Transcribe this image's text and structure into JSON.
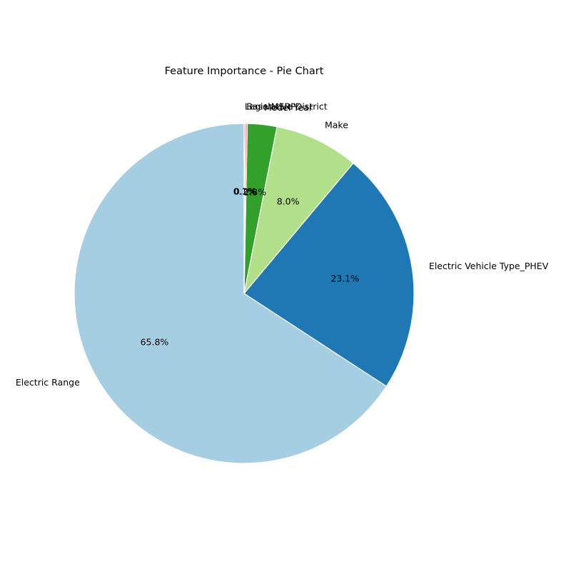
{
  "chart_data": {
    "type": "pie",
    "title": "Feature Importance - Pie Chart",
    "start_angle_deg": 90,
    "direction": "counterclockwise",
    "legend": "none",
    "slices": [
      {
        "label": "Electric Range",
        "value": 65.8,
        "pct_label": "65.8%",
        "color": "#a6cee3"
      },
      {
        "label": "Electric Vehicle Type_PHEV",
        "value": 23.1,
        "pct_label": "23.1%",
        "color": "#1f78b4"
      },
      {
        "label": "Make",
        "value": 8.0,
        "pct_label": "8.0%",
        "color": "#b2df8a"
      },
      {
        "label": "Model Year",
        "value": 2.8,
        "pct_label": "2.8%",
        "color": "#33a02c"
      },
      {
        "label": "Base MSRP",
        "value": 0.2,
        "pct_label": "0.2%",
        "color": "#fb9a99"
      },
      {
        "label": "Legislative District",
        "value": 0.1,
        "pct_label": "0.1%",
        "color": "#e31a1c"
      }
    ]
  }
}
